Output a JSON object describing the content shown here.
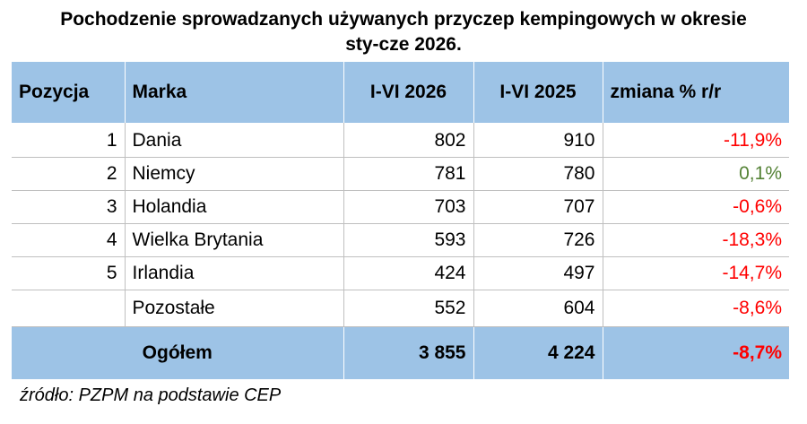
{
  "title_line1": "Pochodzenie sprowadzanych używanych przyczep kempingowych w okresie",
  "title_line2": "sty-cze 2026.",
  "headers": {
    "position": "Pozycja",
    "brand": "Marka",
    "h2026": "I-VI 2026",
    "h2025": "I-VI 2025",
    "change": "zmiana % r/r"
  },
  "rows": [
    {
      "pos": "1",
      "name": "Dania",
      "v2026": "802",
      "v2025": "910",
      "change": "-11,9%",
      "dir": "neg"
    },
    {
      "pos": "2",
      "name": "Niemcy",
      "v2026": "781",
      "v2025": "780",
      "change": "0,1%",
      "dir": "pos"
    },
    {
      "pos": "3",
      "name": "Holandia",
      "v2026": "703",
      "v2025": "707",
      "change": "-0,6%",
      "dir": "neg"
    },
    {
      "pos": "4",
      "name": "Wielka Brytania",
      "v2026": "593",
      "v2025": "726",
      "change": "-18,3%",
      "dir": "neg"
    },
    {
      "pos": "5",
      "name": "Irlandia",
      "v2026": "424",
      "v2025": "497",
      "change": "-14,7%",
      "dir": "neg"
    },
    {
      "pos": "",
      "name": "Pozostałe",
      "v2026": "552",
      "v2025": "604",
      "change": "-8,6%",
      "dir": "neg"
    }
  ],
  "total": {
    "label": "Ogółem",
    "v2026": "3 855",
    "v2025": "4 224",
    "change": "-8,7%"
  },
  "source": "źródło: PZPM na podstawie CEP",
  "colors": {
    "header_bg": "#9dc3e6",
    "negative": "#ff0000",
    "positive": "#548235"
  }
}
